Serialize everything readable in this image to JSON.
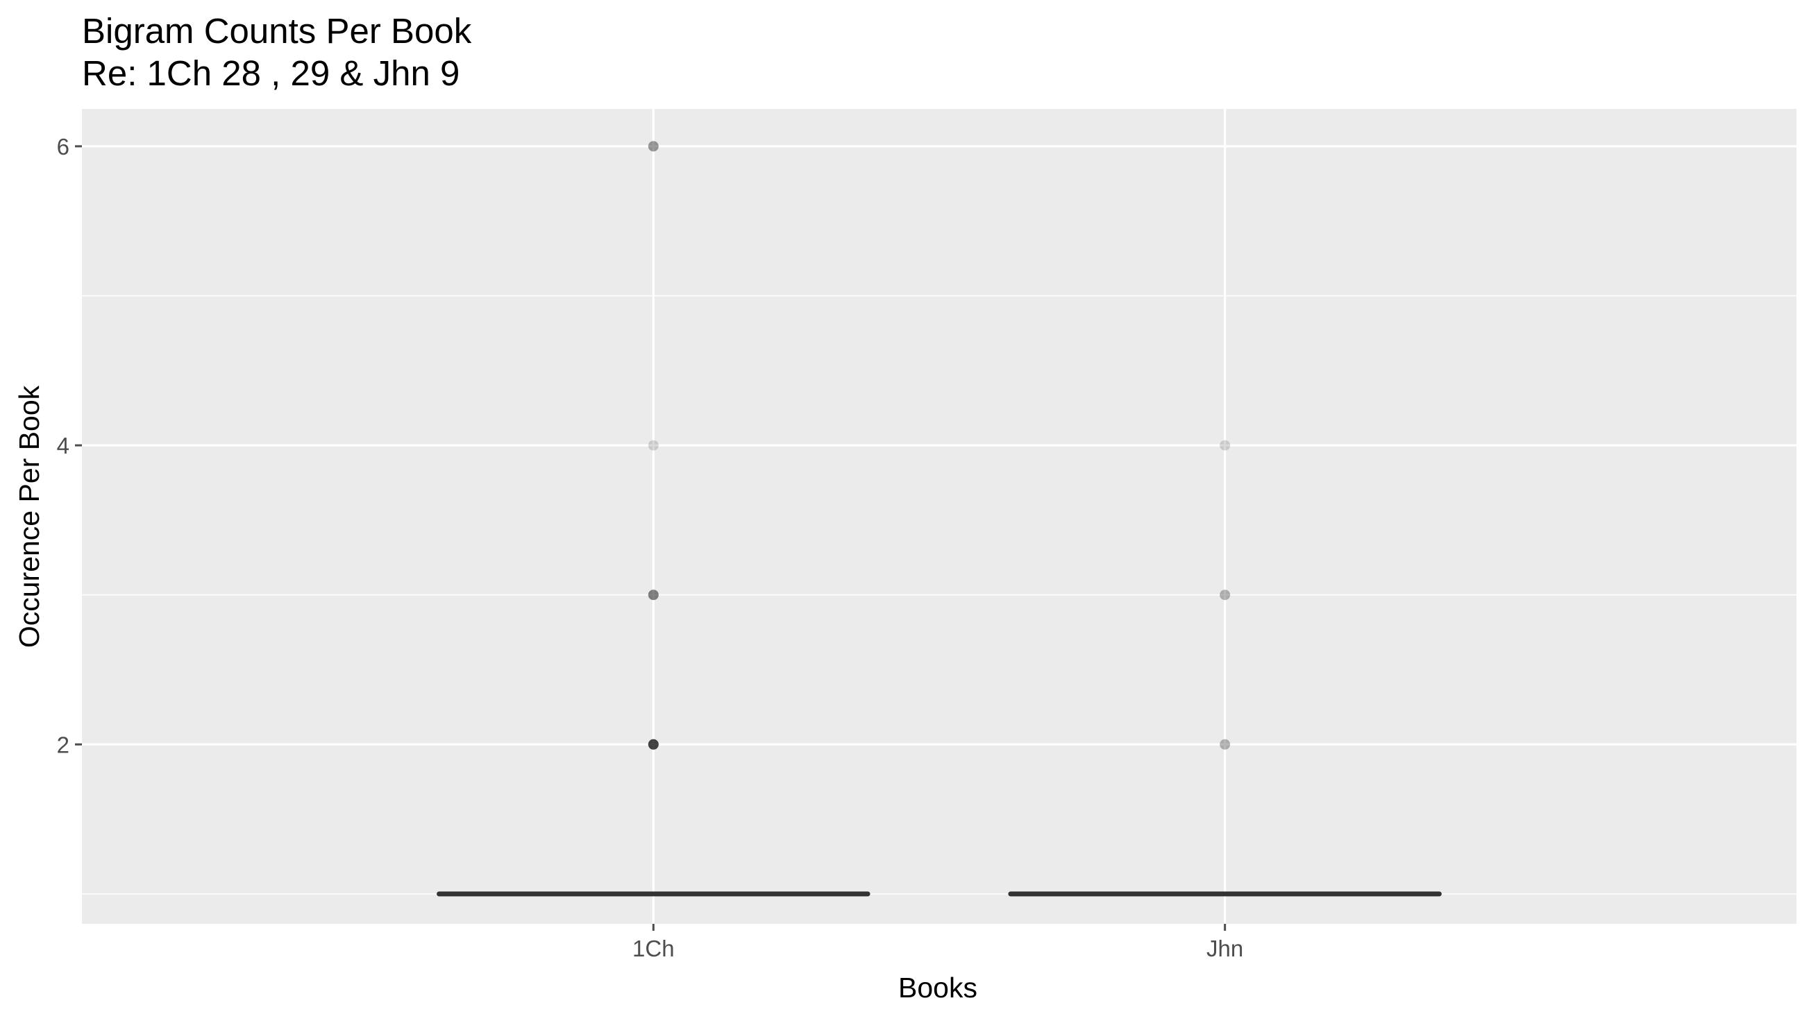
{
  "chart_data": {
    "type": "boxplot",
    "title": "Bigram Counts Per Book",
    "subtitle": "Re: 1Ch 28 , 29 & Jhn 9",
    "xlabel": "Books",
    "ylabel": "Occurence Per Book",
    "categories": [
      "1Ch",
      "Jhn"
    ],
    "ylim": [
      0.8,
      6.25
    ],
    "yticks": [
      2,
      4,
      6
    ],
    "grid": true,
    "legend": "none",
    "colors": {
      "panel": "#ebebeb",
      "grid": "#ffffff",
      "box": "#333333",
      "outlier": "#000000",
      "tick": "#4d4d4d"
    },
    "boxes": [
      {
        "category": "1Ch",
        "q1": 1,
        "median": 1,
        "q3": 1,
        "whisker_low": 1,
        "whisker_high": 1,
        "outliers": [
          {
            "y": 6,
            "count": 3
          },
          {
            "y": 4,
            "count": 1
          },
          {
            "y": 3,
            "count": 4
          },
          {
            "y": 2,
            "count": 8
          }
        ]
      },
      {
        "category": "Jhn",
        "q1": 1,
        "median": 1,
        "q3": 1,
        "whisker_low": 1,
        "whisker_high": 1,
        "outliers": [
          {
            "y": 4,
            "count": 1
          },
          {
            "y": 3,
            "count": 2
          },
          {
            "y": 2,
            "count": 2
          }
        ]
      }
    ]
  }
}
